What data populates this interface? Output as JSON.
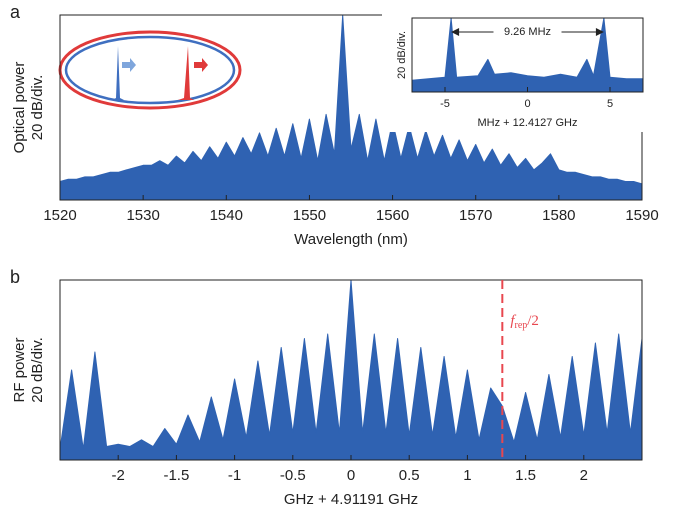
{
  "chart_data": [
    {
      "type": "line",
      "panel": "a",
      "xlabel": "Wavelength (nm)",
      "ylabel": "Optical power",
      "ylabel_scale": "20 dB/div.",
      "color": "#2f62b2",
      "x": [
        1520,
        1521,
        1522,
        1523,
        1524,
        1525,
        1526,
        1527,
        1528,
        1529,
        1530,
        1531,
        1532,
        1533,
        1534,
        1535,
        1536,
        1537,
        1538,
        1539,
        1540,
        1541,
        1542,
        1543,
        1544,
        1545,
        1546,
        1547,
        1548,
        1549,
        1550,
        1551,
        1552,
        1553,
        1554,
        1555,
        1556,
        1557,
        1558,
        1559,
        1560,
        1561,
        1562,
        1563,
        1564,
        1565,
        1566,
        1567,
        1568,
        1569,
        1570,
        1571,
        1572,
        1573,
        1574,
        1575,
        1576,
        1577,
        1578,
        1579,
        1580,
        1581,
        1582,
        1583,
        1584,
        1585,
        1586,
        1587,
        1588,
        1589,
        1590
      ],
      "values": [
        8,
        9,
        9,
        10,
        10,
        11,
        12,
        12,
        13,
        14,
        15,
        15,
        17,
        15,
        19,
        16,
        21,
        17,
        23,
        18,
        25,
        19,
        27,
        20,
        29,
        19,
        31,
        19,
        33,
        18,
        35,
        17,
        37,
        20,
        80,
        22,
        37,
        17,
        35,
        17,
        34,
        18,
        32,
        18,
        30,
        19,
        28,
        18,
        26,
        17,
        24,
        16,
        22,
        15,
        20,
        14,
        18,
        13,
        16,
        20,
        13,
        12,
        12,
        11,
        10,
        10,
        9,
        9,
        8,
        8,
        7
      ],
      "xlim": [
        1520,
        1590
      ],
      "xticks": [
        1520,
        1530,
        1540,
        1550,
        1560,
        1570,
        1580,
        1590
      ],
      "ylim": [
        0,
        80
      ]
    },
    {
      "type": "line",
      "xlabel": "MHz + 12.4127 GHz",
      "ylabel_scale": "20 dB/div.",
      "color": "#2f62b2",
      "annotation": "9.26 MHz",
      "x": [
        -7,
        -6,
        -5,
        -4.63,
        -4.3,
        -3,
        -2.4,
        -2,
        -1,
        0,
        1,
        2,
        3,
        3.6,
        4,
        4.63,
        5,
        6,
        7
      ],
      "values": [
        8,
        9,
        10,
        50,
        10,
        11,
        22,
        12,
        13,
        11,
        10,
        12,
        10,
        22,
        11,
        50,
        10,
        9,
        9
      ],
      "xlim": [
        -7,
        7
      ],
      "xticks": [
        -5,
        0,
        5
      ],
      "ylim": [
        0,
        50
      ]
    },
    {
      "type": "line",
      "panel": "b",
      "xlabel": "GHz + 4.91191 GHz",
      "ylabel": "RF power",
      "ylabel_scale": "20 dB/div.",
      "color": "#2f62b2",
      "x": [
        -2.5,
        -2.4,
        -2.3,
        -2.2,
        -2.1,
        -2,
        -1.9,
        -1.8,
        -1.7,
        -1.6,
        -1.5,
        -1.4,
        -1.3,
        -1.2,
        -1.1,
        -1,
        -0.9,
        -0.8,
        -0.7,
        -0.6,
        -0.5,
        -0.4,
        -0.3,
        -0.2,
        -0.1,
        0,
        0.1,
        0.2,
        0.3,
        0.4,
        0.5,
        0.6,
        0.7,
        0.8,
        0.9,
        1,
        1.1,
        1.2,
        1.3,
        1.4,
        1.5,
        1.6,
        1.7,
        1.8,
        1.9,
        2,
        2.1,
        2.2,
        2.3,
        2.4,
        2.5
      ],
      "values": [
        5,
        40,
        5,
        48,
        6,
        7,
        6,
        9,
        6,
        14,
        7,
        20,
        8,
        28,
        9,
        36,
        10,
        44,
        11,
        50,
        12,
        54,
        12,
        56,
        12,
        80,
        12,
        56,
        12,
        54,
        11,
        50,
        11,
        46,
        10,
        40,
        9,
        32,
        24,
        8,
        30,
        9,
        38,
        10,
        46,
        11,
        52,
        12,
        56,
        12,
        54
      ],
      "xlim": [
        -2.5,
        2.5
      ],
      "xticks": [
        -2,
        -1.5,
        -1,
        -0.5,
        0,
        0.5,
        1,
        1.5,
        2
      ],
      "ylim": [
        0,
        80
      ],
      "marker": {
        "x": 1.3,
        "color": "#e8474f",
        "label_main": "f",
        "label_sub": "rep",
        "label_tail": "/2"
      }
    }
  ]
}
